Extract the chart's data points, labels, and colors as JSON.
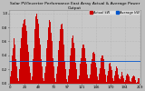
{
  "title": "Solar PV/Inverter Performance East Array Actual & Average Power Output",
  "legend_labels": [
    "Actual kW",
    "Average kW"
  ],
  "legend_colors": [
    "#cc0000",
    "#0055cc"
  ],
  "bar_color": "#cc0000",
  "avg_line_color": "#0055cc",
  "avg_line_y": 0.32,
  "background_color": "#bebebe",
  "plot_bg_color": "#c8c8c8",
  "grid_color": "#aaaaaa",
  "bar_values": [
    0.05,
    0.1,
    0.18,
    0.3,
    0.4,
    0.5,
    0.6,
    0.65,
    0.55,
    0.45,
    0.35,
    0.25,
    0.15,
    0.08,
    0.04,
    0.1,
    0.2,
    0.35,
    0.5,
    0.65,
    0.75,
    0.8,
    0.85,
    0.88,
    0.9,
    0.92,
    0.88,
    0.82,
    0.75,
    0.65,
    0.55,
    0.45,
    0.35,
    0.25,
    0.15,
    0.08,
    0.05,
    0.1,
    0.2,
    0.35,
    0.5,
    0.65,
    0.78,
    0.88,
    0.95,
    1.0,
    0.98,
    0.92,
    0.85,
    0.75,
    0.65,
    0.55,
    0.45,
    0.35,
    0.25,
    0.15,
    0.08,
    0.04,
    0.08,
    0.15,
    0.25,
    0.38,
    0.5,
    0.62,
    0.72,
    0.8,
    0.86,
    0.9,
    0.88,
    0.82,
    0.72,
    0.6,
    0.48,
    0.36,
    0.24,
    0.14,
    0.07,
    0.03,
    0.07,
    0.14,
    0.24,
    0.36,
    0.48,
    0.6,
    0.7,
    0.78,
    0.84,
    0.88,
    0.85,
    0.78,
    0.68,
    0.56,
    0.44,
    0.32,
    0.2,
    0.12,
    0.06,
    0.03,
    0.06,
    0.12,
    0.2,
    0.3,
    0.4,
    0.5,
    0.58,
    0.64,
    0.68,
    0.65,
    0.58,
    0.5,
    0.4,
    0.3,
    0.2,
    0.12,
    0.06,
    0.03,
    0.06,
    0.12,
    0.2,
    0.28,
    0.36,
    0.44,
    0.5,
    0.55,
    0.58,
    0.55,
    0.5,
    0.44,
    0.36,
    0.28,
    0.2,
    0.13,
    0.07,
    0.03,
    0.07,
    0.13,
    0.2,
    0.28,
    0.35,
    0.4,
    0.44,
    0.46,
    0.45,
    0.42,
    0.37,
    0.3,
    0.23,
    0.16,
    0.1,
    0.05,
    0.08,
    0.14,
    0.22,
    0.3,
    0.36,
    0.4,
    0.42,
    0.4,
    0.35,
    0.28,
    0.2,
    0.13,
    0.07,
    0.03,
    0.06,
    0.12,
    0.18,
    0.24,
    0.28,
    0.3,
    0.28,
    0.24,
    0.19,
    0.13,
    0.08,
    0.04,
    0.07,
    0.12,
    0.18,
    0.22,
    0.24,
    0.22,
    0.18,
    0.13,
    0.08,
    0.04,
    0.06,
    0.1,
    0.14,
    0.16,
    0.15,
    0.12,
    0.08,
    0.05,
    0.02,
    0.05,
    0.08,
    0.12,
    0.14,
    0.14,
    0.13,
    0.1,
    0.07,
    0.04,
    0.02,
    0.04,
    0.07,
    0.1,
    0.11,
    0.11,
    0.1,
    0.08,
    0.05,
    0.03,
    0.01,
    0.03,
    0.05,
    0.07,
    0.08,
    0.08
  ],
  "ylim": [
    0,
    1.05
  ],
  "yticks": [
    0.0,
    0.2,
    0.4,
    0.6,
    0.8,
    1.0
  ],
  "title_fontsize": 3.2,
  "tick_fontsize": 2.8,
  "legend_fontsize": 2.6,
  "figsize": [
    1.6,
    1.0
  ],
  "dpi": 100
}
